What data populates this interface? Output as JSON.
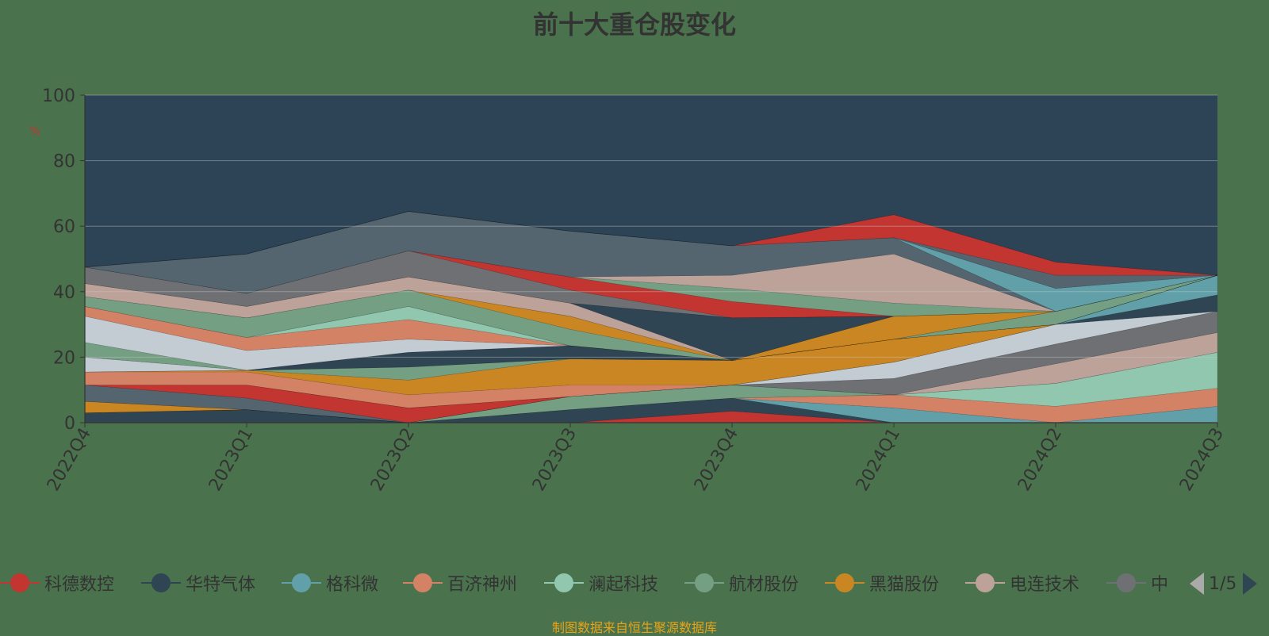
{
  "title": "前十大重仓股变化",
  "footer": "制图数据来自恒生聚源数据库",
  "pager": "1/5",
  "chart_data": {
    "type": "area",
    "stacked": true,
    "ylabel": "%",
    "ylim": [
      0,
      100
    ],
    "yticks": [
      0,
      20,
      40,
      60,
      80,
      100
    ],
    "categories": [
      "2022Q4",
      "2023Q1",
      "2023Q2",
      "2023Q3",
      "2023Q4",
      "2024Q1",
      "2024Q2",
      "2024Q3"
    ],
    "background": "#2d4356",
    "series": [
      {
        "name": "科德数控",
        "color": "#c23531",
        "values": [
          0,
          0,
          0,
          0,
          3.5,
          0,
          0,
          0
        ]
      },
      {
        "name": "华特气体",
        "color": "#2f4554",
        "values": [
          3,
          4,
          0,
          4,
          4,
          0,
          0,
          0
        ]
      },
      {
        "name": "格科微",
        "color": "#61a0a8",
        "values": [
          0,
          0,
          0,
          0,
          0,
          4.5,
          0,
          5
        ]
      },
      {
        "name": "百济神州",
        "color": "#d48265",
        "values": [
          0,
          0,
          0,
          0,
          0,
          4,
          5,
          5.5
        ]
      },
      {
        "name": "澜起科技",
        "color": "#91c7ae",
        "values": [
          0,
          0,
          0,
          0,
          0,
          0,
          7,
          11
        ]
      },
      {
        "name": "航材股份",
        "color": "#749f83",
        "values": [
          0,
          0,
          0,
          4,
          4,
          0,
          0,
          0
        ]
      },
      {
        "name": "黑猫股份",
        "color": "#ca8622",
        "values": [
          3.5,
          0,
          0,
          0,
          0,
          0,
          0,
          0
        ]
      },
      {
        "name": "电连技术",
        "color": "#bda29a",
        "values": [
          0,
          0,
          0,
          0,
          0,
          0,
          6,
          6
        ]
      },
      {
        "name": "中",
        "color": "#6e7074",
        "values": [
          0,
          0,
          0,
          0,
          0,
          5,
          6,
          6.5
        ]
      },
      {
        "name": "",
        "color": "#546570",
        "values": [
          5,
          3.5,
          0,
          0,
          0,
          0,
          0,
          0
        ]
      },
      {
        "name": "",
        "color": "#c4ccd3",
        "values": [
          0,
          0,
          0,
          0,
          0,
          5,
          6,
          0
        ]
      },
      {
        "name": "",
        "color": "#c23531",
        "values": [
          0,
          4,
          4.5,
          0,
          0,
          0,
          0,
          0
        ]
      },
      {
        "name": "",
        "color": "#2f4554",
        "values": [
          0,
          0,
          0,
          0,
          0,
          0,
          0,
          5
        ]
      },
      {
        "name": "",
        "color": "#61a0a8",
        "values": [
          0,
          0,
          0,
          0,
          0,
          0,
          0,
          6
        ]
      },
      {
        "name": "",
        "color": "#d48265",
        "values": [
          4,
          4,
          4,
          3.5,
          0,
          0,
          0,
          0
        ]
      },
      {
        "name": "",
        "color": "#ca8622",
        "values": [
          0,
          0.5,
          4.5,
          8,
          7.5,
          7,
          0,
          0
        ]
      },
      {
        "name": "",
        "color": "#749f83",
        "values": [
          0,
          0,
          4,
          0,
          0,
          0,
          0,
          0
        ]
      },
      {
        "name": "",
        "color": "#6e7074",
        "values": [
          0,
          0,
          0,
          0,
          0,
          0,
          0,
          0
        ]
      },
      {
        "name": "",
        "color": "#c4ccd3",
        "values": [
          4.5,
          0,
          0,
          0,
          0,
          0,
          0,
          0
        ]
      },
      {
        "name": "",
        "color": "#2f4554",
        "values": [
          0,
          0,
          4.5,
          4,
          0,
          0,
          0,
          0
        ]
      },
      {
        "name": "",
        "color": "#749f83",
        "values": [
          4.5,
          0,
          0,
          0,
          0,
          0,
          0,
          0
        ]
      },
      {
        "name": "",
        "color": "#c4ccd3",
        "values": [
          8,
          6,
          4,
          0,
          0,
          0,
          0,
          0
        ]
      },
      {
        "name": "",
        "color": "#d48265",
        "values": [
          3,
          4,
          6,
          0,
          0,
          0,
          0,
          0
        ]
      },
      {
        "name": "",
        "color": "#91c7ae",
        "values": [
          0,
          0,
          4,
          0,
          0,
          0,
          0,
          0
        ]
      },
      {
        "name": "",
        "color": "#749f83",
        "values": [
          0,
          0,
          0,
          0,
          0,
          0,
          4,
          0
        ]
      },
      {
        "name": "",
        "color": "#749f83",
        "values": [
          3,
          6,
          5,
          5,
          0,
          0,
          0,
          0
        ]
      },
      {
        "name": "",
        "color": "#ca8622",
        "values": [
          0,
          0,
          0,
          4,
          0,
          0,
          0,
          0
        ]
      },
      {
        "name": "",
        "color": "#ca8622",
        "values": [
          0,
          0,
          0,
          0,
          0,
          7,
          0,
          0
        ]
      },
      {
        "name": "",
        "color": "#bda29a",
        "values": [
          4,
          3.5,
          4,
          4,
          0,
          0,
          0,
          0
        ]
      },
      {
        "name": "",
        "color": "#2f4554",
        "values": [
          0,
          0,
          0,
          0,
          13,
          0,
          0,
          0
        ]
      },
      {
        "name": "",
        "color": "#91c7ae",
        "values": [
          0,
          0,
          0,
          0,
          0,
          0,
          0,
          0
        ]
      },
      {
        "name": "",
        "color": "#6e7074",
        "values": [
          5,
          4,
          8,
          4,
          0,
          0,
          0,
          0
        ]
      },
      {
        "name": "",
        "color": "#c23531",
        "values": [
          0,
          0,
          0,
          4,
          5,
          0,
          0,
          0
        ]
      },
      {
        "name": "",
        "color": "#749f83",
        "values": [
          0,
          0,
          0,
          0,
          4,
          4,
          0,
          0
        ]
      },
      {
        "name": "",
        "color": "#bda29a",
        "values": [
          0,
          0,
          0,
          0,
          4,
          15,
          0,
          0
        ]
      },
      {
        "name": "",
        "color": "#546570",
        "values": [
          0,
          12,
          12,
          14,
          9,
          5,
          0,
          0
        ]
      },
      {
        "name": "",
        "color": "#61a0a8",
        "values": [
          0,
          0,
          0,
          0,
          0,
          0,
          7,
          0
        ]
      },
      {
        "name": "",
        "color": "#546570",
        "values": [
          0,
          0,
          0,
          0,
          0,
          0,
          4,
          0
        ]
      },
      {
        "name": "",
        "color": "#c23531",
        "values": [
          0,
          0,
          0,
          0,
          0,
          7,
          4,
          0
        ]
      },
      {
        "name": "",
        "color": "#c4ccd3",
        "values": [
          0,
          0,
          0,
          0,
          0,
          0,
          0,
          0
        ]
      }
    ]
  }
}
